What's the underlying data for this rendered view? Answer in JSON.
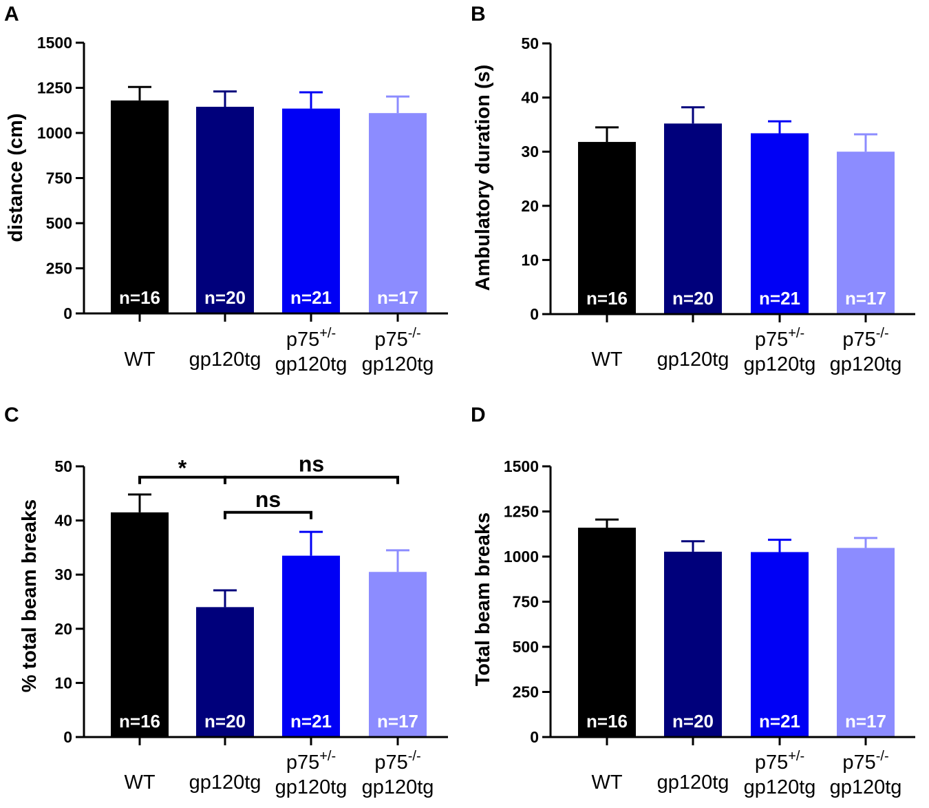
{
  "figure": {
    "categories": [
      {
        "line1": "WT",
        "line2": "",
        "sup": ""
      },
      {
        "line1": "gp120tg",
        "line2": "",
        "sup": ""
      },
      {
        "line1": "p75",
        "line2": "gp120tg",
        "sup": "+/-"
      },
      {
        "line1": "p75",
        "line2": "gp120tg",
        "sup": "-/-"
      }
    ],
    "colors": [
      "#000000",
      "#00007b",
      "#0000f5",
      "#8c8cff"
    ],
    "n_labels": [
      "n=16",
      "n=20",
      "n=21",
      "n=17"
    ]
  },
  "chart_data": [
    {
      "panel": "A",
      "type": "bar",
      "ylabel": "distance (cm)",
      "ylim": [
        0,
        1500
      ],
      "yticks": [
        0,
        250,
        500,
        750,
        1000,
        1250,
        1500
      ],
      "values": [
        1180,
        1145,
        1135,
        1110
      ],
      "errors": [
        75,
        85,
        90,
        92
      ],
      "significance": []
    },
    {
      "panel": "B",
      "type": "bar",
      "ylabel": "Ambulatory duration (s)",
      "ylim": [
        0,
        50
      ],
      "yticks": [
        0,
        10,
        20,
        30,
        40,
        50
      ],
      "values": [
        31.8,
        35.2,
        33.4,
        30.0
      ],
      "errors": [
        2.7,
        3.0,
        2.2,
        3.2
      ],
      "significance": []
    },
    {
      "panel": "C",
      "type": "bar",
      "ylabel": "% total beam breaks",
      "ylim": [
        0,
        50
      ],
      "yticks": [
        0,
        10,
        20,
        30,
        40,
        50
      ],
      "values": [
        41.5,
        24.0,
        33.5,
        30.5
      ],
      "errors": [
        3.3,
        3.1,
        4.4,
        4.0
      ],
      "significance": [
        {
          "from": 0,
          "to": 1,
          "label": "*",
          "level": 48.0
        },
        {
          "from": 1,
          "to": 3,
          "label": "ns",
          "level": 48.0
        },
        {
          "from": 1,
          "to": 2,
          "label": "ns",
          "level": 41.5
        }
      ]
    },
    {
      "panel": "D",
      "type": "bar",
      "ylabel": "Total beam breaks",
      "ylim": [
        0,
        1500
      ],
      "yticks": [
        0,
        250,
        500,
        750,
        1000,
        1250,
        1500
      ],
      "values": [
        1160,
        1027,
        1025,
        1048
      ],
      "errors": [
        45,
        58,
        68,
        55
      ],
      "significance": []
    }
  ]
}
